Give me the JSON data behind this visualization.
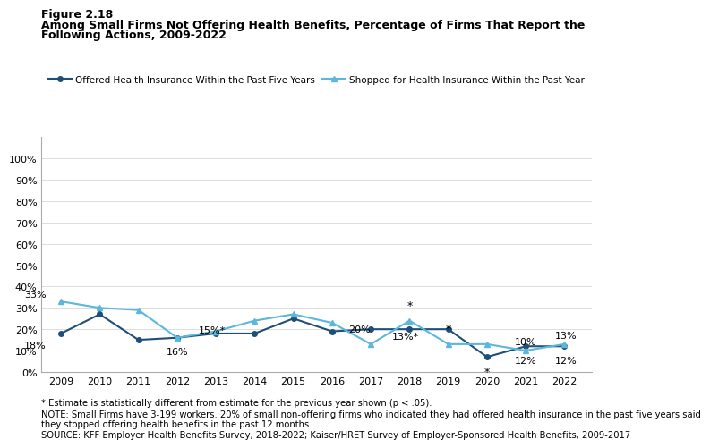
{
  "title_line1": "Figure 2.18",
  "title_line2a": "Among Small Firms Not Offering Health Benefits, Percentage of Firms That Report the",
  "title_line2b": "Following Actions, 2009-2022",
  "years": [
    2009,
    2010,
    2011,
    2012,
    2013,
    2014,
    2015,
    2016,
    2017,
    2018,
    2019,
    2020,
    2021,
    2022
  ],
  "series1_name": "Offered Health Insurance Within the Past Five Years",
  "series1_values": [
    18,
    27,
    15,
    16,
    18,
    18,
    25,
    19,
    20,
    20,
    20,
    7,
    12,
    12
  ],
  "series1_color": "#1F4E79",
  "series2_name": "Shopped for Health Insurance Within the Past Year",
  "series2_values": [
    33,
    30,
    29,
    16,
    19,
    24,
    27,
    23,
    13,
    24,
    13,
    13,
    10,
    13
  ],
  "series2_color": "#5BB7DB",
  "yticks": [
    0,
    10,
    20,
    30,
    40,
    50,
    60,
    70,
    80,
    90,
    100
  ],
  "ytick_labels": [
    "0%",
    "10%",
    "20%",
    "30%",
    "40%",
    "50%",
    "60%",
    "70%",
    "80%",
    "90%",
    "100%"
  ],
  "footnote1": "* Estimate is statistically different from estimate for the previous year shown (p < .05).",
  "footnote2a": "NOTE: Small Firms have 3-199 workers. 20% of small non-offering firms who indicated they had offered health insurance in the past five years said",
  "footnote2b": "they stopped offering health benefits in the past 12 months.",
  "footnote3": "SOURCE: KFF Employer Health Benefits Survey, 2018-2022; Kaiser/HRET Survey of Employer-Sponsored Health Benefits, 2009-2017",
  "background_color": "#FFFFFF"
}
